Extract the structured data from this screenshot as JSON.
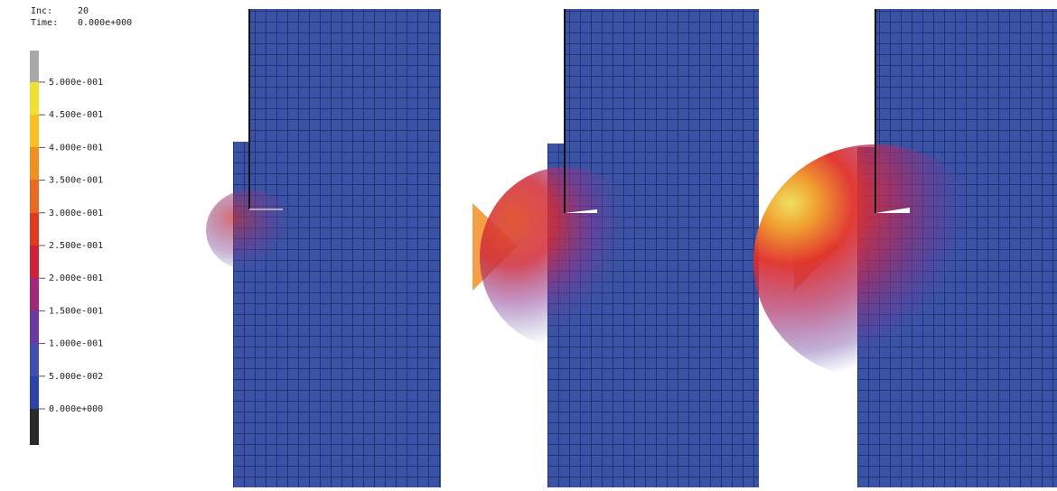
{
  "header": {
    "inc_label": "Inc:",
    "inc": "20",
    "time_label": "Time:",
    "time": "0.000e+000"
  },
  "legend": {
    "labels": [
      "5.000e-001",
      "4.500e-001",
      "4.000e-001",
      "3.500e-001",
      "3.000e-001",
      "2.500e-001",
      "2.000e-001",
      "1.500e-001",
      "1.000e-001",
      "5.000e-002",
      "0.000e+000"
    ]
  }
}
